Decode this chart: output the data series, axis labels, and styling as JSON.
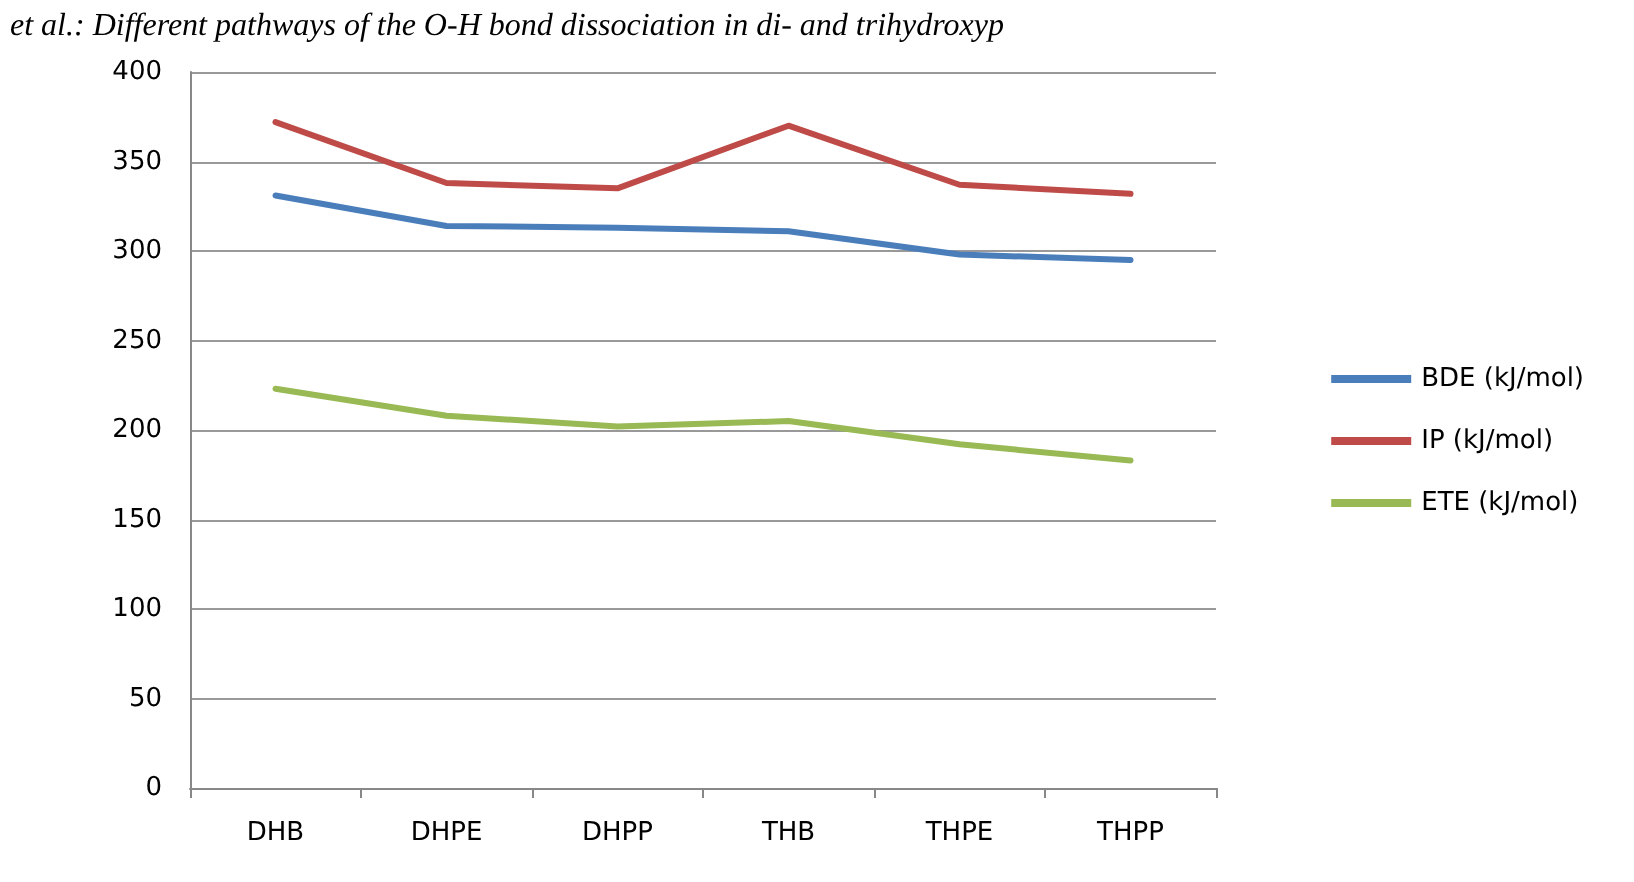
{
  "chart_data": {
    "type": "line",
    "title": "et al.: Different pathways of the O-H bond dissociation in di- and trihydroxyp",
    "categories": [
      "DHB",
      "DHPE",
      "DHPP",
      "THB",
      "THPE",
      "THPP"
    ],
    "series": [
      {
        "name": "BDE (kJ/mol)",
        "color": "#4a7ebb",
        "values": [
          331,
          314,
          313,
          311,
          298,
          295
        ]
      },
      {
        "name": "IP (kJ/mol)",
        "color": "#be4b48",
        "values": [
          372,
          338,
          335,
          370,
          337,
          332
        ]
      },
      {
        "name": "ETE (kJ/mol)",
        "color": "#98b954",
        "values": [
          223,
          208,
          202,
          205,
          192,
          183
        ]
      }
    ],
    "ylim": [
      0,
      400
    ],
    "yticks": [
      0,
      50,
      100,
      150,
      200,
      250,
      300,
      350,
      400
    ],
    "grid": "y",
    "legend": "right",
    "marker": "none",
    "line_style": "solid"
  }
}
